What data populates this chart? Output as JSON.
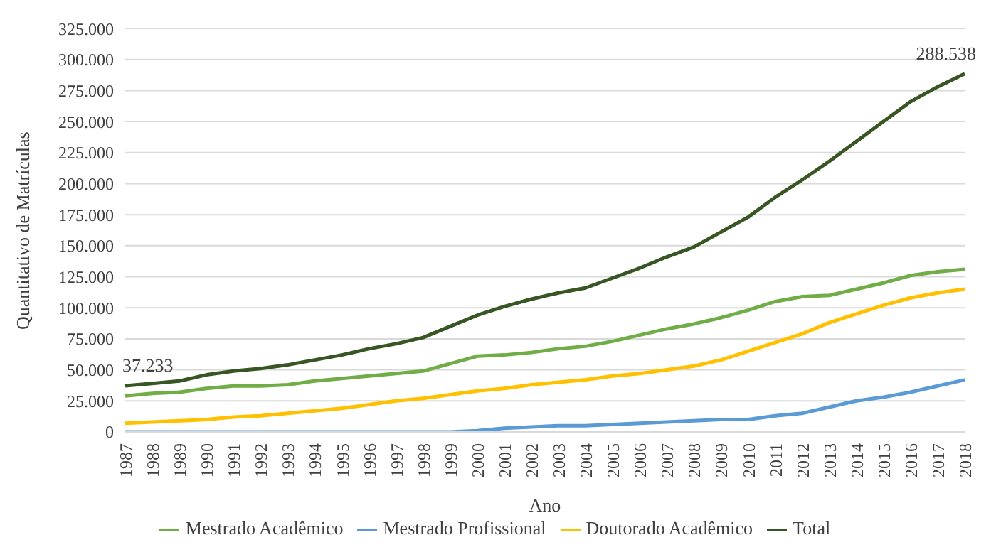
{
  "chart_data": {
    "type": "line",
    "xlabel": "Ano",
    "ylabel": "Quantitativo de Matrículas",
    "categories": [
      "1987",
      "1988",
      "1989",
      "1990",
      "1991",
      "1992",
      "1993",
      "1994",
      "1995",
      "1996",
      "1997",
      "1998",
      "1999",
      "2000",
      "2001",
      "2002",
      "2003",
      "2004",
      "2005",
      "2006",
      "2007",
      "2008",
      "2009",
      "2010",
      "2011",
      "2012",
      "2013",
      "2014",
      "2015",
      "2016",
      "2017",
      "2018"
    ],
    "series": [
      {
        "name": "Mestrado Acadêmico",
        "color": "#70ad47",
        "values": [
          29000,
          31000,
          32000,
          35000,
          37000,
          37000,
          38000,
          41000,
          43000,
          45000,
          47000,
          49000,
          55000,
          61000,
          62000,
          64000,
          67000,
          69000,
          73000,
          78000,
          83000,
          87000,
          92000,
          98000,
          105000,
          109000,
          110000,
          115000,
          120000,
          126000,
          129000,
          131000
        ]
      },
      {
        "name": "Mestrado Profissional",
        "color": "#5b9bd5",
        "values": [
          0,
          0,
          0,
          0,
          0,
          0,
          0,
          0,
          0,
          0,
          0,
          0,
          0,
          1000,
          3000,
          4000,
          5000,
          5000,
          6000,
          7000,
          8000,
          9000,
          10000,
          10000,
          13000,
          15000,
          20000,
          25000,
          28000,
          32000,
          37000,
          42000
        ]
      },
      {
        "name": "Doutorado Acadêmico",
        "color": "#ffc000",
        "values": [
          7000,
          8000,
          9000,
          10000,
          12000,
          13000,
          15000,
          17000,
          19000,
          22000,
          25000,
          27000,
          30000,
          33000,
          35000,
          38000,
          40000,
          42000,
          45000,
          47000,
          50000,
          53000,
          58000,
          65000,
          72000,
          79000,
          88000,
          95000,
          102000,
          108000,
          112000,
          115000
        ]
      },
      {
        "name": "Total",
        "color": "#375623",
        "values": [
          37233,
          39000,
          41000,
          46000,
          49000,
          51000,
          54000,
          58000,
          62000,
          67000,
          71000,
          76000,
          85000,
          94000,
          101000,
          107000,
          112000,
          116000,
          124000,
          132000,
          141000,
          149000,
          161000,
          173000,
          189000,
          203000,
          218000,
          234000,
          250000,
          266000,
          278000,
          288538
        ]
      }
    ],
    "ylim": [
      0,
      325000
    ],
    "yticks": [
      {
        "value": 0,
        "label": "0"
      },
      {
        "value": 25000,
        "label": "25.000"
      },
      {
        "value": 50000,
        "label": "50.000"
      },
      {
        "value": 75000,
        "label": "75.000"
      },
      {
        "value": 100000,
        "label": "100.000"
      },
      {
        "value": 125000,
        "label": "125.000"
      },
      {
        "value": 150000,
        "label": "150.000"
      },
      {
        "value": 175000,
        "label": "175.000"
      },
      {
        "value": 200000,
        "label": "200.000"
      },
      {
        "value": 225000,
        "label": "225.000"
      },
      {
        "value": 250000,
        "label": "250.000"
      },
      {
        "value": 275000,
        "label": "275.000"
      },
      {
        "value": 300000,
        "label": "300.000"
      },
      {
        "value": 325000,
        "label": "325.000"
      }
    ],
    "grid": "y",
    "legend": "bottom",
    "marker": "none",
    "line_style": "solid",
    "annotations": [
      {
        "text": "37.233",
        "x": "1987",
        "y": 37233
      },
      {
        "text": "288.538",
        "x": "2018",
        "y": 288538
      }
    ]
  }
}
